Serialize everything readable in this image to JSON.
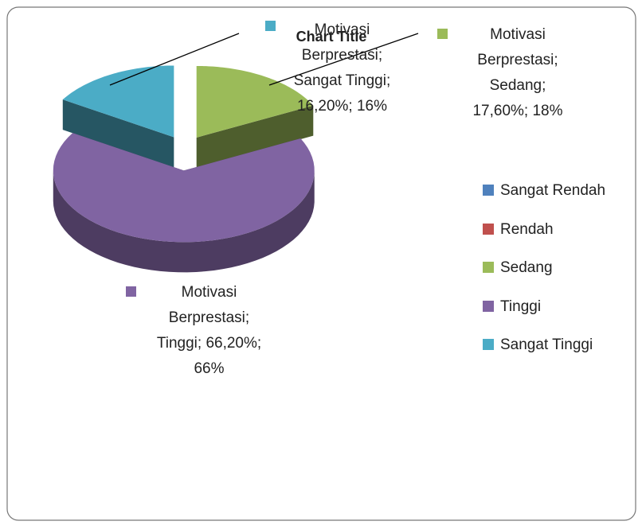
{
  "chart_data": {
    "type": "pie",
    "title": "Chart Title",
    "series_name": "Motivasi Berprestasi",
    "separator": ";",
    "categories": [
      "Sangat Rendah",
      "Rendah",
      "Sedang",
      "Tinggi",
      "Sangat Tinggi"
    ],
    "values": [
      0,
      0,
      17.6,
      66.2,
      16.2
    ],
    "value_labels": [
      null,
      null,
      "17,60%",
      "66,20%",
      "16,20%"
    ],
    "percent_labels": [
      null,
      null,
      "18%",
      "66%",
      "16%"
    ],
    "colors": [
      "#4f81bd",
      "#c0504d",
      "#9bbb59",
      "#8064a2",
      "#4bacc6"
    ],
    "exploded": true,
    "three_d": true,
    "legend": "right"
  }
}
